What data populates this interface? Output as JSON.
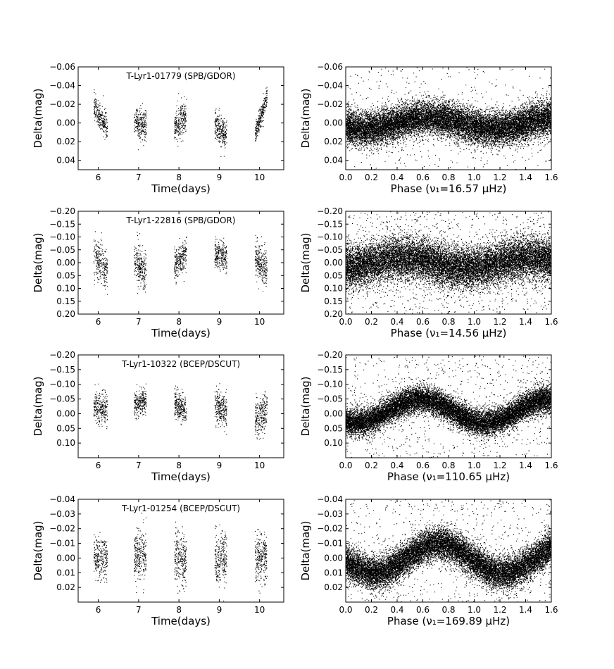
{
  "chart_data": [
    {
      "type": "scatter",
      "title": "T-Lyr1-01779 (SPB/GDOR)",
      "xlabel": "Time(days)",
      "ylabel": "Delta(mag)",
      "xlim": [
        5.5,
        10.6
      ],
      "ylim": [
        0.05,
        -0.06
      ],
      "xticks": [
        6,
        7,
        8,
        9,
        10
      ],
      "xtick_labels": [
        "6",
        "7",
        "8",
        "9",
        "10"
      ],
      "yticks": [
        -0.06,
        -0.04,
        -0.02,
        0.0,
        0.02,
        0.04
      ],
      "ytick_labels": [
        "−0.06",
        "−0.04",
        "−0.02",
        "0.00",
        "0.02",
        "0.04"
      ],
      "series": [
        {
          "sampling": "nightly clusters",
          "nights": [
            {
              "start": 5.88,
              "end": 6.22,
              "y_start": -0.017,
              "y_end": 0.005,
              "spread": 0.007
            },
            {
              "start": 6.88,
              "end": 7.18,
              "y_start": -0.001,
              "y_end": 0.003,
              "spread": 0.008
            },
            {
              "start": 7.88,
              "end": 8.18,
              "y_start": 0.003,
              "y_end": -0.009,
              "spread": 0.008
            },
            {
              "start": 8.88,
              "end": 9.18,
              "y_start": 0.002,
              "y_end": 0.013,
              "spread": 0.008
            },
            {
              "start": 9.88,
              "end": 10.18,
              "y_start": 0.012,
              "y_end": -0.028,
              "spread": 0.006
            }
          ]
        }
      ],
      "grid": false
    },
    {
      "type": "scatter",
      "title": "",
      "xlabel": "Phase (ν₁=16.57 μHz)",
      "ylabel": "Delta(mag)",
      "xlim": [
        0.0,
        1.6
      ],
      "ylim": [
        0.05,
        -0.06
      ],
      "xticks": [
        0.0,
        0.2,
        0.4,
        0.6,
        0.8,
        1.0,
        1.2,
        1.4,
        1.6
      ],
      "xtick_labels": [
        "0.0",
        "0.2",
        "0.4",
        "0.6",
        "0.8",
        "1.0",
        "1.2",
        "1.4",
        "1.6"
      ],
      "yticks": [
        -0.06,
        -0.04,
        -0.02,
        0.0,
        0.02,
        0.04
      ],
      "ytick_labels": [
        "−0.06",
        "−0.04",
        "−0.02",
        "0.00",
        "0.02",
        "0.04"
      ],
      "series": [
        {
          "sampling": "phase-folded",
          "mean": 0.0,
          "amplitude": 0.006,
          "peak_phase": 0.65,
          "spread": 0.009,
          "outlier_fraction": 0.025
        }
      ],
      "grid": false
    },
    {
      "type": "scatter",
      "title": "T-Lyr1-22816 (SPB/GDOR)",
      "xlabel": "Time(days)",
      "ylabel": "Delta(mag)",
      "xlim": [
        5.5,
        10.6
      ],
      "ylim": [
        0.2,
        -0.2
      ],
      "xticks": [
        6,
        7,
        8,
        9,
        10
      ],
      "xtick_labels": [
        "6",
        "7",
        "8",
        "9",
        "10"
      ],
      "yticks": [
        -0.2,
        -0.15,
        -0.1,
        -0.05,
        0.0,
        0.05,
        0.1,
        0.15,
        0.2
      ],
      "ytick_labels": [
        "−0.20",
        "−0.15",
        "−0.10",
        "−0.05",
        "0.00",
        "0.05",
        "0.10",
        "0.15",
        "0.20"
      ],
      "series": [
        {
          "sampling": "nightly clusters",
          "nights": [
            {
              "start": 5.88,
              "end": 6.22,
              "y_start": -0.04,
              "y_end": 0.04,
              "spread": 0.04
            },
            {
              "start": 6.88,
              "end": 7.18,
              "y_start": -0.01,
              "y_end": 0.03,
              "spread": 0.04
            },
            {
              "start": 7.88,
              "end": 8.18,
              "y_start": 0.01,
              "y_end": -0.04,
              "spread": 0.03
            },
            {
              "start": 8.88,
              "end": 9.18,
              "y_start": -0.04,
              "y_end": -0.02,
              "spread": 0.03
            },
            {
              "start": 9.88,
              "end": 10.18,
              "y_start": -0.02,
              "y_end": 0.02,
              "spread": 0.035
            }
          ]
        }
      ],
      "grid": false
    },
    {
      "type": "scatter",
      "title": "",
      "xlabel": "Phase (ν₁=14.56 μHz)",
      "ylabel": "Delta(mag)",
      "xlim": [
        0.0,
        1.6
      ],
      "ylim": [
        0.2,
        -0.2
      ],
      "xticks": [
        0.0,
        0.2,
        0.4,
        0.6,
        0.8,
        1.0,
        1.2,
        1.4,
        1.6
      ],
      "xtick_labels": [
        "0.0",
        "0.2",
        "0.4",
        "0.6",
        "0.8",
        "1.0",
        "1.2",
        "1.4",
        "1.6"
      ],
      "yticks": [
        -0.2,
        -0.15,
        -0.1,
        -0.05,
        0.0,
        0.05,
        0.1,
        0.15,
        0.2
      ],
      "ytick_labels": [
        "−0.20",
        "−0.15",
        "−0.10",
        "−0.05",
        "0.00",
        "0.05",
        "0.10",
        "0.15",
        "0.20"
      ],
      "series": [
        {
          "sampling": "phase-folded",
          "mean": 0.0,
          "amplitude": 0.02,
          "peak_phase": 0.45,
          "spread": 0.04,
          "outlier_fraction": 0.06
        }
      ],
      "grid": false
    },
    {
      "type": "scatter",
      "title": "T-Lyr1-10322 (BCEP/DSCUT)",
      "xlabel": "Time(days)",
      "ylabel": "Delta(mag)",
      "xlim": [
        5.5,
        10.6
      ],
      "ylim": [
        0.15,
        -0.2
      ],
      "xticks": [
        6,
        7,
        8,
        9,
        10
      ],
      "xtick_labels": [
        "6",
        "7",
        "8",
        "9",
        "10"
      ],
      "yticks": [
        -0.2,
        -0.15,
        -0.1,
        -0.05,
        0.0,
        0.05,
        0.1
      ],
      "ytick_labels": [
        "−0.20",
        "−0.15",
        "−0.10",
        "−0.05",
        "0.00",
        "0.05",
        "0.10"
      ],
      "series": [
        {
          "sampling": "nightly clusters",
          "nights": [
            {
              "start": 5.88,
              "end": 6.22,
              "y_start": -0.03,
              "y_end": -0.01,
              "spread": 0.028
            },
            {
              "start": 6.88,
              "end": 7.18,
              "y_start": -0.03,
              "y_end": -0.05,
              "spread": 0.022
            },
            {
              "start": 7.88,
              "end": 8.18,
              "y_start": -0.04,
              "y_end": -0.01,
              "spread": 0.025
            },
            {
              "start": 8.88,
              "end": 9.18,
              "y_start": -0.03,
              "y_end": -0.01,
              "spread": 0.028
            },
            {
              "start": 9.88,
              "end": 10.18,
              "y_start": 0.02,
              "y_end": -0.02,
              "spread": 0.032
            }
          ]
        }
      ],
      "grid": false
    },
    {
      "type": "scatter",
      "title": "",
      "xlabel": "Phase (ν₁=110.65 μHz)",
      "ylabel": "Delta(mag)",
      "xlim": [
        0.0,
        1.6
      ],
      "ylim": [
        0.15,
        -0.2
      ],
      "xticks": [
        0.0,
        0.2,
        0.4,
        0.6,
        0.8,
        1.0,
        1.2,
        1.4,
        1.6
      ],
      "xtick_labels": [
        "0.0",
        "0.2",
        "0.4",
        "0.6",
        "0.8",
        "1.0",
        "1.2",
        "1.4",
        "1.6"
      ],
      "yticks": [
        -0.2,
        -0.15,
        -0.1,
        -0.05,
        0.0,
        0.05,
        0.1
      ],
      "ytick_labels": [
        "−0.20",
        "−0.15",
        "−0.10",
        "−0.05",
        "0.00",
        "0.05",
        "0.10"
      ],
      "series": [
        {
          "sampling": "phase-folded",
          "mean": -0.01,
          "amplitude": 0.04,
          "peak_phase": 0.58,
          "spread": 0.022,
          "outlier_fraction": 0.05
        }
      ],
      "grid": false
    },
    {
      "type": "scatter",
      "title": "T-Lyr1-01254 (BCEP/DSCUT)",
      "xlabel": "Time(days)",
      "ylabel": "Delta(mag)",
      "xlim": [
        5.5,
        10.6
      ],
      "ylim": [
        0.03,
        -0.04
      ],
      "xticks": [
        6,
        7,
        8,
        9,
        10
      ],
      "xtick_labels": [
        "6",
        "7",
        "8",
        "9",
        "10"
      ],
      "yticks": [
        -0.04,
        -0.03,
        -0.02,
        -0.01,
        0.0,
        0.01,
        0.02
      ],
      "ytick_labels": [
        "−0.04",
        "−0.03",
        "−0.02",
        "−0.01",
        "0.00",
        "0.01",
        "0.02"
      ],
      "series": [
        {
          "sampling": "nightly clusters",
          "nights": [
            {
              "start": 5.88,
              "end": 6.22,
              "y_start": -0.001,
              "y_end": 0.0,
              "spread": 0.007
            },
            {
              "start": 6.88,
              "end": 7.18,
              "y_start": -0.003,
              "y_end": -0.002,
              "spread": 0.009
            },
            {
              "start": 7.88,
              "end": 8.18,
              "y_start": -0.002,
              "y_end": 0.002,
              "spread": 0.009
            },
            {
              "start": 8.88,
              "end": 9.18,
              "y_start": 0.002,
              "y_end": 0.0,
              "spread": 0.009
            },
            {
              "start": 9.88,
              "end": 10.18,
              "y_start": 0.0,
              "y_end": -0.001,
              "spread": 0.008
            }
          ]
        }
      ],
      "grid": false
    },
    {
      "type": "scatter",
      "title": "",
      "xlabel": "Phase (ν₁=169.89 μHz)",
      "ylabel": "Delta(mag)",
      "xlim": [
        0.0,
        1.6
      ],
      "ylim": [
        0.03,
        -0.04
      ],
      "xticks": [
        0.0,
        0.2,
        0.4,
        0.6,
        0.8,
        1.0,
        1.2,
        1.4,
        1.6
      ],
      "xtick_labels": [
        "0.0",
        "0.2",
        "0.4",
        "0.6",
        "0.8",
        "1.0",
        "1.2",
        "1.4",
        "1.6"
      ],
      "yticks": [
        -0.04,
        -0.03,
        -0.02,
        -0.01,
        0.0,
        0.01,
        0.02
      ],
      "ytick_labels": [
        "−0.04",
        "−0.03",
        "−0.02",
        "−0.01",
        "0.00",
        "0.01",
        "0.02"
      ],
      "series": [
        {
          "sampling": "phase-folded",
          "mean": 0.0,
          "amplitude": 0.01,
          "peak_phase": 0.72,
          "spread": 0.0055,
          "outlier_fraction": 0.04
        }
      ],
      "grid": false
    }
  ]
}
